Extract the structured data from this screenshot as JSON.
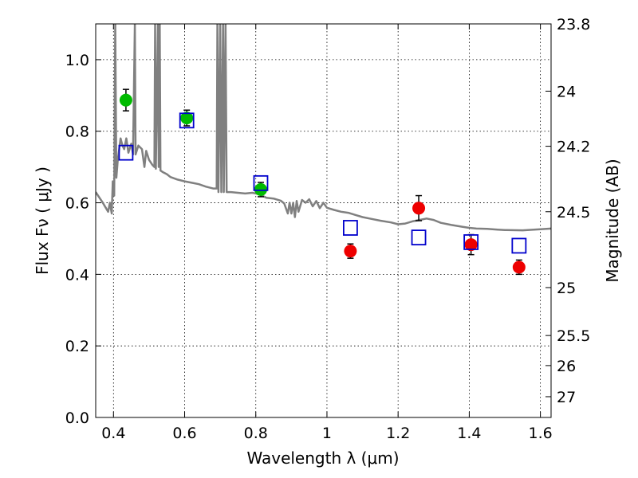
{
  "chart_data": {
    "type": "scatter",
    "xlabel": "Wavelength  λ (μm)",
    "ylabel": "Flux  Fν  ( μJy )",
    "ylabel_right": "Magnitude (AB)",
    "xlim": [
      0.35,
      1.63
    ],
    "ylim": [
      0.0,
      1.1
    ],
    "x_ticks": [
      0.4,
      0.6,
      0.8,
      1.0,
      1.2,
      1.4,
      1.6
    ],
    "x_tick_labels": [
      "0.4",
      "0.6",
      "0.8",
      "1",
      "1.2",
      "1.4",
      "1.6"
    ],
    "y_ticks": [
      0.0,
      0.2,
      0.4,
      0.6,
      0.8,
      1.0
    ],
    "y_tick_labels": [
      "0.0",
      "0.2",
      "0.4",
      "0.6",
      "0.8",
      "1.0"
    ],
    "right_ticks": [
      {
        "flux": 1.1,
        "label": "23.8"
      },
      {
        "flux": 0.912,
        "label": "24"
      },
      {
        "flux": 0.758,
        "label": "24.2"
      },
      {
        "flux": 0.575,
        "label": "24.5"
      },
      {
        "flux": 0.363,
        "label": "25"
      },
      {
        "flux": 0.229,
        "label": "25.5"
      },
      {
        "flux": 0.145,
        "label": "26"
      },
      {
        "flux": 0.058,
        "label": "27"
      }
    ],
    "grid": true,
    "series": [
      {
        "color": "#00bb00",
        "marker": "circle",
        "points": [
          {
            "x": 0.435,
            "y": 0.887,
            "err": 0.03
          },
          {
            "x": 0.606,
            "y": 0.837,
            "err": 0.022
          },
          {
            "x": 0.814,
            "y": 0.637,
            "err": 0.02
          }
        ]
      },
      {
        "color": "#ee0000",
        "marker": "circle",
        "points": [
          {
            "x": 1.066,
            "y": 0.465,
            "err": 0.02
          },
          {
            "x": 1.258,
            "y": 0.585,
            "err": 0.035
          },
          {
            "x": 1.405,
            "y": 0.483,
            "err": 0.028
          },
          {
            "x": 1.54,
            "y": 0.42,
            "err": 0.02
          }
        ]
      },
      {
        "color": "#0000cc",
        "marker": "open-square",
        "points": [
          {
            "x": 0.435,
            "y": 0.74
          },
          {
            "x": 0.606,
            "y": 0.83
          },
          {
            "x": 0.814,
            "y": 0.655
          },
          {
            "x": 1.066,
            "y": 0.53
          },
          {
            "x": 1.258,
            "y": 0.503
          },
          {
            "x": 1.405,
            "y": 0.49
          },
          {
            "x": 1.54,
            "y": 0.48
          }
        ]
      }
    ],
    "model_spectrum": {
      "color": "#808080",
      "points": [
        [
          0.35,
          0.63
        ],
        [
          0.37,
          0.6
        ],
        [
          0.385,
          0.575
        ],
        [
          0.39,
          0.6
        ],
        [
          0.395,
          0.57
        ],
        [
          0.398,
          0.66
        ],
        [
          0.402,
          0.62
        ],
        [
          0.405,
          1.1
        ],
        [
          0.408,
          0.67
        ],
        [
          0.412,
          0.72
        ],
        [
          0.42,
          0.78
        ],
        [
          0.425,
          0.76
        ],
        [
          0.43,
          0.75
        ],
        [
          0.436,
          0.78
        ],
        [
          0.442,
          0.74
        ],
        [
          0.45,
          0.765
        ],
        [
          0.455,
          0.735
        ],
        [
          0.46,
          1.1
        ],
        [
          0.462,
          0.735
        ],
        [
          0.47,
          0.76
        ],
        [
          0.48,
          0.75
        ],
        [
          0.487,
          0.7
        ],
        [
          0.492,
          0.745
        ],
        [
          0.5,
          0.72
        ],
        [
          0.51,
          0.705
        ],
        [
          0.515,
          0.7
        ],
        [
          0.517,
          1.1
        ],
        [
          0.519,
          0.695
        ],
        [
          0.525,
          1.1
        ],
        [
          0.527,
          0.7
        ],
        [
          0.53,
          1.1
        ],
        [
          0.532,
          0.69
        ],
        [
          0.54,
          0.685
        ],
        [
          0.55,
          0.68
        ],
        [
          0.56,
          0.672
        ],
        [
          0.58,
          0.665
        ],
        [
          0.6,
          0.66
        ],
        [
          0.62,
          0.656
        ],
        [
          0.64,
          0.652
        ],
        [
          0.66,
          0.645
        ],
        [
          0.68,
          0.64
        ],
        [
          0.69,
          0.64
        ],
        [
          0.692,
          1.1
        ],
        [
          0.695,
          0.63
        ],
        [
          0.7,
          1.1
        ],
        [
          0.703,
          0.63
        ],
        [
          0.708,
          1.1
        ],
        [
          0.71,
          0.63
        ],
        [
          0.715,
          1.1
        ],
        [
          0.718,
          0.63
        ],
        [
          0.73,
          0.63
        ],
        [
          0.75,
          0.628
        ],
        [
          0.77,
          0.626
        ],
        [
          0.79,
          0.628
        ],
        [
          0.81,
          0.624
        ],
        [
          0.83,
          0.614
        ],
        [
          0.85,
          0.612
        ],
        [
          0.87,
          0.606
        ],
        [
          0.88,
          0.598
        ],
        [
          0.89,
          0.57
        ],
        [
          0.895,
          0.6
        ],
        [
          0.9,
          0.57
        ],
        [
          0.905,
          0.6
        ],
        [
          0.91,
          0.56
        ],
        [
          0.915,
          0.605
        ],
        [
          0.92,
          0.575
        ],
        [
          0.93,
          0.608
        ],
        [
          0.94,
          0.6
        ],
        [
          0.95,
          0.61
        ],
        [
          0.96,
          0.59
        ],
        [
          0.97,
          0.605
        ],
        [
          0.98,
          0.585
        ],
        [
          0.99,
          0.6
        ],
        [
          1.0,
          0.586
        ],
        [
          1.02,
          0.58
        ],
        [
          1.04,
          0.575
        ],
        [
          1.06,
          0.572
        ],
        [
          1.08,
          0.566
        ],
        [
          1.1,
          0.56
        ],
        [
          1.12,
          0.556
        ],
        [
          1.15,
          0.55
        ],
        [
          1.18,
          0.545
        ],
        [
          1.2,
          0.54
        ],
        [
          1.22,
          0.542
        ],
        [
          1.24,
          0.548
        ],
        [
          1.26,
          0.552
        ],
        [
          1.28,
          0.556
        ],
        [
          1.3,
          0.552
        ],
        [
          1.32,
          0.544
        ],
        [
          1.35,
          0.538
        ],
        [
          1.38,
          0.533
        ],
        [
          1.4,
          0.53
        ],
        [
          1.42,
          0.528
        ],
        [
          1.45,
          0.527
        ],
        [
          1.48,
          0.525
        ],
        [
          1.5,
          0.524
        ],
        [
          1.55,
          0.523
        ],
        [
          1.6,
          0.526
        ],
        [
          1.63,
          0.528
        ]
      ]
    }
  }
}
